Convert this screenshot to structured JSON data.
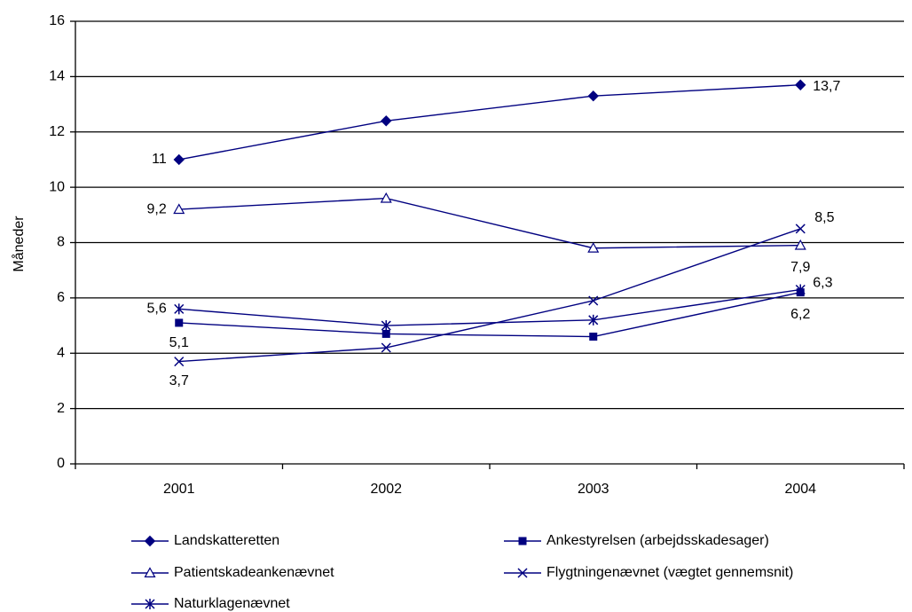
{
  "chart_data": {
    "type": "line",
    "title": "",
    "xlabel": "",
    "ylabel": "Måneder",
    "categories": [
      "2001",
      "2002",
      "2003",
      "2004"
    ],
    "ylim": [
      0,
      16
    ],
    "yticks": [
      0,
      2,
      4,
      6,
      8,
      10,
      12,
      14,
      16
    ],
    "ytick_labels": [
      "0",
      "2",
      "4",
      "6",
      "8",
      "10",
      "12",
      "14",
      "16"
    ],
    "grid": "horizontal",
    "legend_position": "bottom",
    "color": "#000080",
    "series": [
      {
        "name": "Landskatteretten",
        "marker": "diamond-filled",
        "values": [
          11.0,
          12.4,
          13.3,
          13.7
        ],
        "labels": [
          "11",
          null,
          null,
          "13,7"
        ]
      },
      {
        "name": "Ankestyrelsen (arbejdsskadesager)",
        "marker": "square-filled",
        "values": [
          5.1,
          4.7,
          4.6,
          6.2
        ],
        "labels": [
          "5,1",
          null,
          null,
          "6,2"
        ]
      },
      {
        "name": "Patientskadeankenævnet",
        "marker": "triangle-open",
        "values": [
          9.2,
          9.6,
          7.8,
          7.9
        ],
        "labels": [
          "9,2",
          null,
          null,
          "7,9"
        ]
      },
      {
        "name": "Flygtningenævnet (vægtet gennemsnit)",
        "marker": "x",
        "values": [
          3.7,
          4.2,
          5.9,
          8.5
        ],
        "labels": [
          "3,7",
          null,
          null,
          "8,5"
        ]
      },
      {
        "name": "Naturklagenævnet",
        "marker": "star",
        "values": [
          5.6,
          5.0,
          5.2,
          6.3
        ],
        "labels": [
          "5,6",
          null,
          null,
          "6,3"
        ]
      }
    ]
  }
}
